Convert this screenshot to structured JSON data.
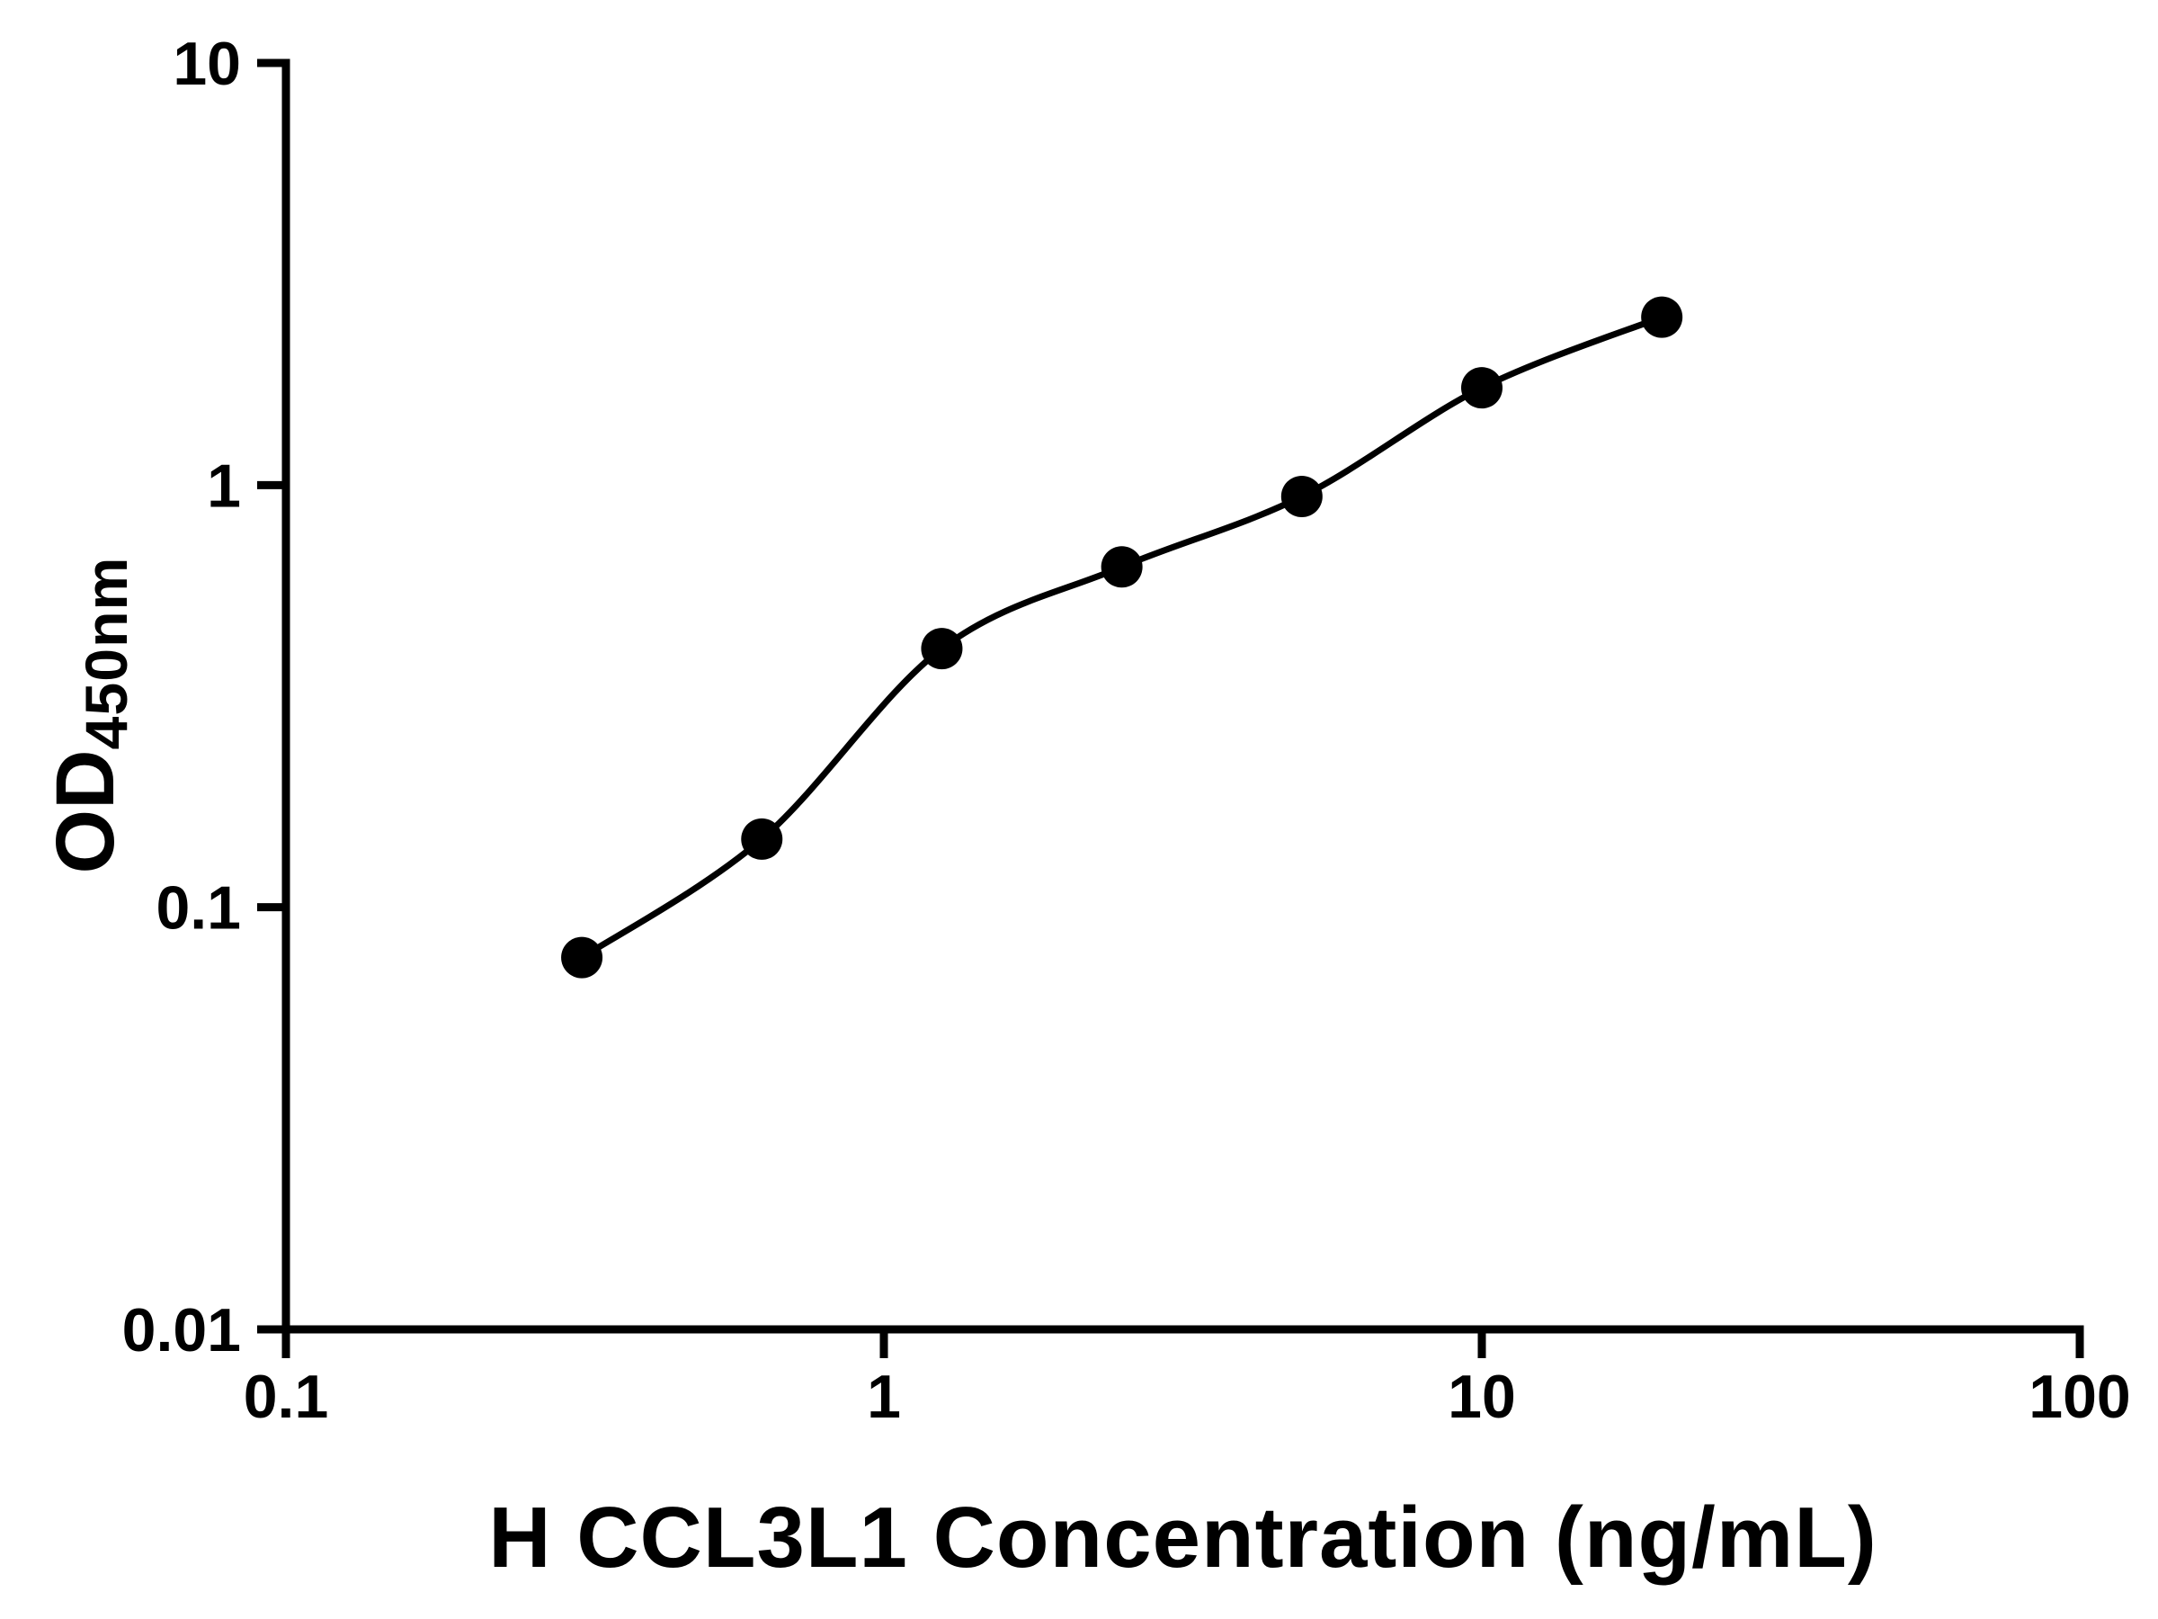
{
  "chart_data": {
    "type": "scatter",
    "title": "",
    "xlabel": "H CCL3L1 Concentration (ng/mL)",
    "ylabel": "OD",
    "ylabel_sub": "450nm",
    "x": [
      0.3125,
      0.625,
      1.25,
      2.5,
      5,
      10,
      20
    ],
    "y": [
      0.076,
      0.145,
      0.41,
      0.64,
      0.94,
      1.7,
      2.5
    ],
    "x_scale": "log",
    "y_scale": "log",
    "xlim": [
      0.1,
      100
    ],
    "ylim": [
      0.01,
      10
    ],
    "x_ticks": [
      0.1,
      1,
      10,
      100
    ],
    "x_tick_labels": [
      "0.1",
      "1",
      "10",
      "100"
    ],
    "y_ticks": [
      0.01,
      0.1,
      1,
      10
    ],
    "y_tick_labels": [
      "0.01",
      "0.1",
      "1",
      "10"
    ],
    "fit": "smooth curve through standard points",
    "grid": false,
    "legend": "none",
    "marker_color": "#000000",
    "line_color": "#000000",
    "axis_color": "#000000",
    "background_color": "#ffffff"
  }
}
